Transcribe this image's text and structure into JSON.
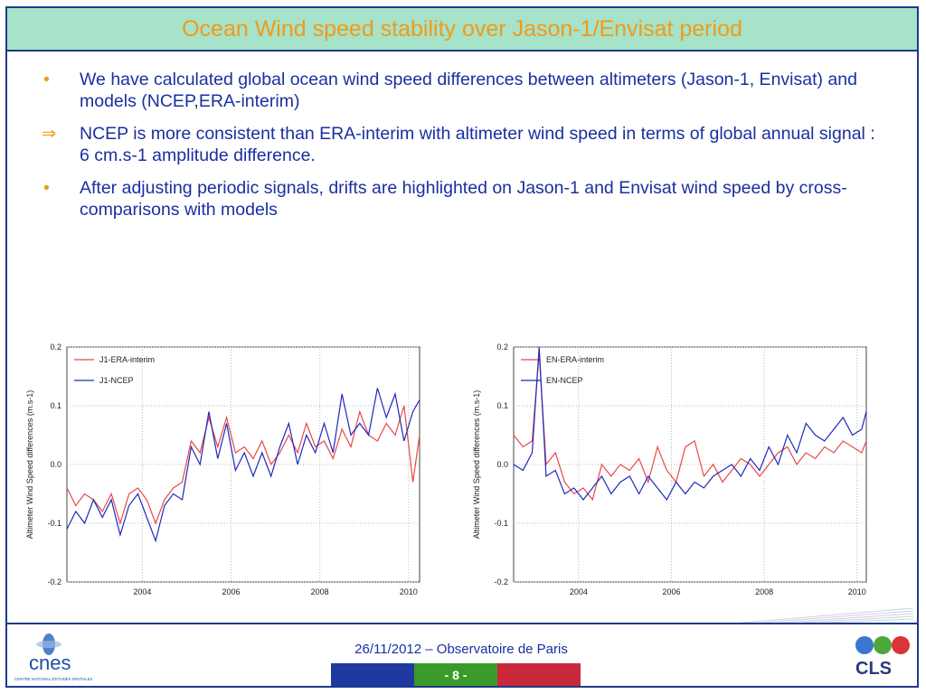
{
  "title": "Ocean Wind speed stability over Jason-1/Envisat period",
  "bullets": [
    {
      "marker": "•",
      "text": "We have calculated global ocean wind speed differences between altimeters (Jason-1, Envisat)  and models (NCEP,ERA-interim)"
    },
    {
      "marker": "⇒",
      "text": "NCEP is more consistent than ERA-interim with altimeter wind speed in terms of global annual signal : 6 cm.s-1 amplitude difference."
    },
    {
      "marker": "•",
      "text": "After adjusting periodic signals, drifts are highlighted on Jason-1 and Envisat wind speed by cross-comparisons with models"
    }
  ],
  "footer": {
    "text": "26/11/2012 – Observatoire de Paris",
    "page": "- 8 -"
  },
  "logos": {
    "left": "cnes",
    "left_sub": "CENTRE NATIONAL D'ETUDES SPATIALES",
    "right": "CLS"
  },
  "colors": {
    "era": "#e8474a",
    "ncep": "#1e2ab8",
    "title_bg": "#a6e3c8",
    "title_text": "#f29a1a",
    "body_text": "#1a2fa0"
  },
  "chart_data": [
    {
      "type": "line",
      "ylabel": "Altimeter Wind Speed differences (m.s-1)",
      "xlabel": "",
      "xlim": [
        2002.3,
        2010.25
      ],
      "ylim": [
        -0.2,
        0.2
      ],
      "xticks": [
        2004,
        2006,
        2008,
        2010
      ],
      "yticks": [
        -0.2,
        -0.1,
        0.0,
        0.1,
        0.2
      ],
      "ytick_labels": [
        "-0.2",
        "-0.1",
        "0.0",
        "0.1",
        "0.2"
      ],
      "grid": true,
      "legend": "top-left",
      "series": [
        {
          "name": "J1-ERA-interim",
          "color": "#e8474a",
          "x": [
            2002.3,
            2002.5,
            2002.7,
            2002.9,
            2003.1,
            2003.3,
            2003.5,
            2003.7,
            2003.9,
            2004.1,
            2004.3,
            2004.5,
            2004.7,
            2004.9,
            2005.1,
            2005.3,
            2005.5,
            2005.7,
            2005.9,
            2006.1,
            2006.3,
            2006.5,
            2006.7,
            2006.9,
            2007.1,
            2007.3,
            2007.5,
            2007.7,
            2007.9,
            2008.1,
            2008.3,
            2008.5,
            2008.7,
            2008.9,
            2009.1,
            2009.3,
            2009.5,
            2009.7,
            2009.9,
            2010.1,
            2010.25
          ],
          "y": [
            -0.04,
            -0.07,
            -0.05,
            -0.06,
            -0.08,
            -0.05,
            -0.1,
            -0.05,
            -0.04,
            -0.06,
            -0.1,
            -0.06,
            -0.04,
            -0.03,
            0.04,
            0.02,
            0.08,
            0.03,
            0.08,
            0.02,
            0.03,
            0.01,
            0.04,
            0.0,
            0.02,
            0.05,
            0.02,
            0.07,
            0.03,
            0.04,
            0.01,
            0.06,
            0.03,
            0.09,
            0.05,
            0.04,
            0.07,
            0.05,
            0.1,
            -0.03,
            0.05
          ]
        },
        {
          "name": "J1-NCEP",
          "color": "#1e2ab8",
          "x": [
            2002.3,
            2002.5,
            2002.7,
            2002.9,
            2003.1,
            2003.3,
            2003.5,
            2003.7,
            2003.9,
            2004.1,
            2004.3,
            2004.5,
            2004.7,
            2004.9,
            2005.1,
            2005.3,
            2005.5,
            2005.7,
            2005.9,
            2006.1,
            2006.3,
            2006.5,
            2006.7,
            2006.9,
            2007.1,
            2007.3,
            2007.5,
            2007.7,
            2007.9,
            2008.1,
            2008.3,
            2008.5,
            2008.7,
            2008.9,
            2009.1,
            2009.3,
            2009.5,
            2009.7,
            2009.9,
            2010.1,
            2010.25
          ],
          "y": [
            -0.11,
            -0.08,
            -0.1,
            -0.06,
            -0.09,
            -0.06,
            -0.12,
            -0.07,
            -0.05,
            -0.09,
            -0.13,
            -0.07,
            -0.05,
            -0.06,
            0.03,
            0.0,
            0.09,
            0.01,
            0.07,
            -0.01,
            0.02,
            -0.02,
            0.02,
            -0.02,
            0.03,
            0.07,
            0.0,
            0.05,
            0.02,
            0.07,
            0.02,
            0.12,
            0.05,
            0.07,
            0.05,
            0.13,
            0.08,
            0.12,
            0.04,
            0.09,
            0.11
          ]
        }
      ]
    },
    {
      "type": "line",
      "ylabel": "Altimeter Wind Speed differences (m.s-1)",
      "xlabel": "",
      "xlim": [
        2002.6,
        2010.2
      ],
      "ylim": [
        -0.2,
        0.2
      ],
      "xticks": [
        2004,
        2006,
        2008,
        2010
      ],
      "yticks": [
        -0.2,
        -0.1,
        0.0,
        0.1,
        0.2
      ],
      "ytick_labels": [
        "-0.2",
        "-0.1",
        "0.0",
        "0.1",
        "0.2"
      ],
      "grid": true,
      "legend": "top-left",
      "series": [
        {
          "name": "EN-ERA-interim",
          "color": "#e8474a",
          "x": [
            2002.6,
            2002.8,
            2003.0,
            2003.15,
            2003.3,
            2003.5,
            2003.7,
            2003.9,
            2004.1,
            2004.3,
            2004.5,
            2004.7,
            2004.9,
            2005.1,
            2005.3,
            2005.5,
            2005.7,
            2005.9,
            2006.1,
            2006.3,
            2006.5,
            2006.7,
            2006.9,
            2007.1,
            2007.3,
            2007.5,
            2007.7,
            2007.9,
            2008.1,
            2008.3,
            2008.5,
            2008.7,
            2008.9,
            2009.1,
            2009.3,
            2009.5,
            2009.7,
            2009.9,
            2010.1,
            2010.2
          ],
          "y": [
            0.05,
            0.03,
            0.04,
            0.19,
            0.0,
            0.02,
            -0.03,
            -0.05,
            -0.04,
            -0.06,
            0.0,
            -0.02,
            0.0,
            -0.01,
            0.01,
            -0.03,
            0.03,
            -0.01,
            -0.03,
            0.03,
            0.04,
            -0.02,
            0.0,
            -0.03,
            -0.01,
            0.01,
            0.0,
            -0.02,
            0.0,
            0.02,
            0.03,
            0.0,
            0.02,
            0.01,
            0.03,
            0.02,
            0.04,
            0.03,
            0.02,
            0.04
          ]
        },
        {
          "name": "EN-NCEP",
          "color": "#1e2ab8",
          "x": [
            2002.6,
            2002.8,
            2003.0,
            2003.15,
            2003.3,
            2003.5,
            2003.7,
            2003.9,
            2004.1,
            2004.3,
            2004.5,
            2004.7,
            2004.9,
            2005.1,
            2005.3,
            2005.5,
            2005.7,
            2005.9,
            2006.1,
            2006.3,
            2006.5,
            2006.7,
            2006.9,
            2007.1,
            2007.3,
            2007.5,
            2007.7,
            2007.9,
            2008.1,
            2008.3,
            2008.5,
            2008.7,
            2008.9,
            2009.1,
            2009.3,
            2009.5,
            2009.7,
            2009.9,
            2010.1,
            2010.2
          ],
          "y": [
            0.0,
            -0.01,
            0.02,
            0.2,
            -0.02,
            -0.01,
            -0.05,
            -0.04,
            -0.06,
            -0.04,
            -0.02,
            -0.05,
            -0.03,
            -0.02,
            -0.05,
            -0.02,
            -0.04,
            -0.06,
            -0.03,
            -0.05,
            -0.03,
            -0.04,
            -0.02,
            -0.01,
            0.0,
            -0.02,
            0.01,
            -0.01,
            0.03,
            0.0,
            0.05,
            0.02,
            0.07,
            0.05,
            0.04,
            0.06,
            0.08,
            0.05,
            0.06,
            0.09
          ]
        }
      ]
    }
  ]
}
